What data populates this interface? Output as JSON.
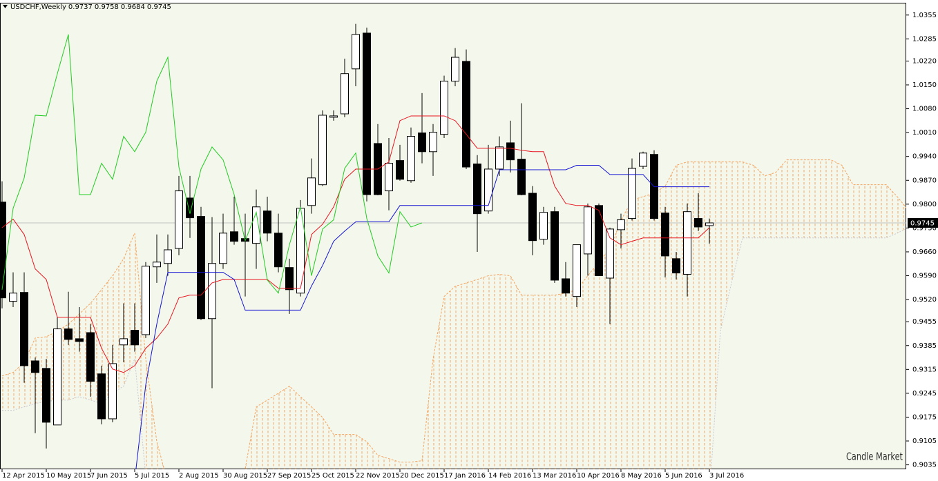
{
  "chart_data": {
    "type": "candlestick",
    "title": "USDCHF,Weekly",
    "watermark": "Candle Market",
    "background": "#f4f7ec",
    "up_color": "#ffffff",
    "down_color": "#000000",
    "price_line_color": "#c0c0c0",
    "ylim": [
      0.9022,
      1.0391
    ],
    "yticks": [
      1.0355,
      1.0285,
      {
        "value": 1.022,
        "label": "1.0220"
      },
      {
        "value": 1.015,
        "label": "1.0150"
      },
      {
        "value": 1.008,
        "label": "1.0080"
      },
      {
        "value": 1.001,
        "label": "1.0010"
      },
      {
        "value": 0.994,
        "label": "0.9940"
      },
      {
        "value": 0.987,
        "label": "0.9870"
      },
      {
        "value": 0.98,
        "label": "0.9800"
      },
      {
        "value": 0.973,
        "label": "0.9730"
      },
      {
        "value": 0.966,
        "label": "0.9660"
      },
      {
        "value": 0.959,
        "label": "0.9590"
      },
      {
        "value": 0.952,
        "label": "0.9520"
      },
      0.9455,
      0.9385,
      0.9315,
      0.9245,
      0.9175,
      0.9105,
      0.9035
    ],
    "categories": [
      "12 Apr 2015",
      null,
      null,
      null,
      "10 May 2015",
      null,
      null,
      null,
      "7 Jun 2015",
      null,
      null,
      null,
      "5 Jul 2015",
      null,
      null,
      null,
      "2 Aug 2015",
      null,
      null,
      null,
      "30 Aug 2015",
      null,
      null,
      null,
      "27 Sep 2015",
      null,
      null,
      null,
      "25 Oct 2015",
      null,
      null,
      null,
      "22 Nov 2015",
      null,
      null,
      null,
      "20 Dec 2015",
      null,
      null,
      null,
      "17 Jan 2016",
      null,
      null,
      null,
      "14 Feb 2016",
      null,
      null,
      null,
      "13 Mar 2016",
      null,
      null,
      null,
      "10 Apr 2016",
      null,
      null,
      null,
      "8 May 2016",
      null,
      null,
      null,
      "5 Jun 2016",
      null,
      null,
      null,
      "3 Jul 2016",
      null,
      null,
      null,
      null,
      null,
      null,
      null,
      null,
      null,
      null,
      null,
      null,
      null,
      null,
      null,
      null,
      null,
      null
    ],
    "open": [
      0.9806,
      0.9515,
      0.9541,
      0.934,
      0.9318,
      0.9152,
      0.9434,
      0.9405,
      0.9423,
      0.9302,
      0.917,
      0.9387,
      0.943,
      0.9417,
      0.9616,
      0.9626,
      0.967,
      0.9818,
      0.9764,
      0.9464,
      0.9626,
      0.9719,
      0.9699,
      0.9685,
      0.978,
      0.9715,
      0.9614,
      0.9539,
      0.9796,
      0.9857,
      1.0055,
      1.0065,
      1.0197,
      1.0302,
      0.9978,
      0.9839,
      0.9928,
      0.9869,
      1.0009,
      0.9954,
      1.0005,
      1.0161,
      1.0219,
      0.9918,
      0.978,
      0.9903,
      0.998,
      0.9932,
      0.9832,
      0.9697,
      0.9778,
      0.9581,
      0.9529,
      0.9654,
      0.9796,
      0.9583,
      0.9725,
      0.9758,
      0.9911,
      0.9946,
      0.9774,
      0.964,
      0.9594,
      0.9758,
      0.9737,
      null,
      null,
      null,
      null,
      null,
      null,
      null,
      null,
      null,
      null,
      null,
      null,
      null,
      null,
      null,
      null,
      null,
      null
    ],
    "high": [
      0.9867,
      0.96,
      0.96,
      0.935,
      0.9346,
      0.9468,
      0.9543,
      0.9498,
      0.9448,
      0.9326,
      0.9387,
      0.9509,
      0.9509,
      0.963,
      0.9711,
      0.9711,
      0.9883,
      0.9883,
      0.9792,
      0.9762,
      0.9772,
      0.9822,
      0.9772,
      0.9843,
      0.9822,
      0.9772,
      0.964,
      0.9812,
      0.9934,
      1.0075,
      1.0075,
      1.0227,
      1.0329,
      1.0318,
      1.0035,
      0.9994,
      0.9974,
      1.0025,
      1.0126,
      1.0035,
      1.0177,
      1.0258,
      1.0254,
      0.9944,
      0.9974,
      0.9999,
      1.0045,
      1.0096,
      0.9853,
      0.9792,
      0.9792,
      0.963,
      0.9681,
      0.9802,
      0.9802,
      0.9731,
      0.9772,
      0.9934,
      0.9954,
      0.9958,
      0.9792,
      0.966,
      0.9802,
      0.9832,
      0.9758,
      null,
      null,
      null,
      null,
      null,
      null,
      null,
      null,
      null,
      null,
      null,
      null,
      null,
      null,
      null,
      null,
      null,
      null
    ],
    "low": [
      0.9494,
      0.9498,
      0.9276,
      0.9128,
      0.9083,
      0.9152,
      0.9387,
      0.9367,
      0.9235,
      0.9154,
      0.916,
      0.9336,
      0.9367,
      0.9407,
      0.9569,
      0.959,
      0.965,
      0.9701,
      0.946,
      0.926,
      0.961,
      0.9681,
      0.9529,
      0.961,
      0.9691,
      0.96,
      0.9478,
      0.9529,
      0.9772,
      0.9853,
      1.0045,
      1.0055,
      1.0146,
      0.9808,
      0.9826,
      0.9782,
      0.9869,
      0.9863,
      0.992,
      0.9883,
      0.9994,
      1.0146,
      0.9903,
      0.966,
      0.9772,
      0.9883,
      0.9893,
      0.9826,
      0.965,
      0.9681,
      0.9569,
      0.9529,
      0.9498,
      0.959,
      0.959,
      0.9448,
      0.967,
      0.9752,
      0.9903,
      0.9752,
      0.9585,
      0.9579,
      0.9529,
      0.9721,
      0.9684,
      null,
      null,
      null,
      null,
      null,
      null,
      null,
      null,
      null,
      null,
      null,
      null,
      null,
      null,
      null,
      null,
      null,
      null
    ],
    "close": [
      0.9525,
      0.9539,
      0.9326,
      0.9306,
      0.916,
      0.9434,
      0.9403,
      0.9397,
      0.928,
      0.917,
      0.9332,
      0.9405,
      0.9387,
      0.9618,
      0.963,
      0.9666,
      0.9839,
      0.976,
      0.9464,
      0.9626,
      0.9715,
      0.9691,
      0.9691,
      0.9792,
      0.9715,
      0.9616,
      0.9549,
      0.9788,
      0.9877,
      1.0061,
      1.0059,
      1.0183,
      1.0298,
      0.9828,
      0.9828,
      0.992,
      0.9873,
      0.9999,
      0.9954,
      1.0011,
      1.0161,
      1.0231,
      0.9909,
      0.9772,
      0.9903,
      0.9968,
      0.993,
      0.9828,
      0.9693,
      0.9776,
      0.9577,
      0.9539,
      0.9681,
      0.9792,
      0.959,
      0.9727,
      0.9754,
      0.9905,
      0.995,
      0.9758,
      0.9648,
      0.9598,
      0.9778,
      0.9733,
      0.9745,
      null,
      null,
      null,
      null,
      null,
      null,
      null,
      null,
      null,
      null,
      null,
      null,
      null,
      null,
      null,
      null,
      null,
      null
    ],
    "cloud": {
      "color": "#f4a460",
      "span_a": {
        "color": "#f4a460",
        "values": [
          0.9296,
          0.9306,
          0.9336,
          0.9407,
          0.9411,
          0.9427,
          0.9448,
          0.9478,
          0.9509,
          0.9549,
          0.959,
          0.964,
          0.9715,
          0.9346,
          0.9103,
          0.8982,
          0.8942,
          0.8942,
          0.8942,
          0.8942,
          0.8942,
          0.8942,
          0.9023,
          0.9205,
          0.9225,
          0.9245,
          0.9266,
          0.9235,
          0.9205,
          0.9174,
          0.9124,
          0.9124,
          0.9124,
          0.9103,
          0.9063,
          0.9053,
          0.9043,
          0.9043,
          0.9047,
          0.9346,
          0.9529,
          0.9559,
          0.9569,
          0.9579,
          0.959,
          0.9594,
          0.959,
          0.9533,
          0.9533,
          0.9533,
          0.9533,
          0.9539,
          0.9549,
          0.959,
          0.963,
          0.967,
          0.9752,
          0.9812,
          0.9822,
          0.9832,
          0.9853,
          0.9914,
          0.9924,
          0.9924,
          0.9924,
          0.9924,
          0.9924,
          0.9924,
          0.9914,
          0.9883,
          0.9893,
          0.993,
          0.993,
          0.993,
          0.993,
          0.993,
          0.9914,
          0.9857,
          0.9857,
          0.9857,
          0.9857,
          0.9822,
          0.9782
        ]
      },
      "span_b": {
        "color": "#c8c8d2",
        "values": [
          0.9195,
          0.9195,
          0.9205,
          0.9215,
          0.9221,
          0.9225,
          0.9225,
          0.9235,
          0.9225,
          0.9215,
          0.9245,
          0.9266,
          0.9346,
          0.9002,
          0.8942,
          0.8942,
          0.8942,
          0.8942,
          0.8942,
          0.8942,
          0.8942,
          0.8942,
          0.8942,
          0.8942,
          0.8942,
          0.8942,
          0.8942,
          0.8942,
          0.8942,
          0.8942,
          0.8942,
          0.8942,
          0.8942,
          0.8942,
          0.8942,
          0.8942,
          0.8942,
          0.8942,
          0.8942,
          0.8942,
          0.8942,
          0.8942,
          0.8942,
          0.8942,
          0.8942,
          0.8942,
          0.8942,
          0.8942,
          0.8942,
          0.8942,
          0.8942,
          0.8942,
          0.8942,
          0.8942,
          0.8942,
          0.8942,
          0.8942,
          0.8942,
          0.8942,
          0.8942,
          0.8942,
          0.8942,
          0.8942,
          0.8942,
          0.8942,
          0.9428,
          0.9569,
          0.9701,
          0.9701,
          0.9701,
          0.9701,
          0.9701,
          0.9701,
          0.9701,
          0.9701,
          0.9701,
          0.9701,
          0.9701,
          0.9701,
          0.9701,
          0.9701,
          0.9715,
          0.9731
        ]
      }
    },
    "lines": [
      {
        "color": "#e8141e",
        "values": [
          0.9731,
          0.9756,
          0.9711,
          0.961,
          0.9579,
          0.9468,
          0.9468,
          0.9468,
          0.9468,
          0.9377,
          0.9316,
          0.9306,
          0.9326,
          0.9377,
          0.9407,
          0.9448,
          0.9525,
          0.9533,
          0.9533,
          0.9569,
          0.9579,
          0.9579,
          0.9579,
          0.9579,
          0.9579,
          0.9553,
          0.9553,
          0.9553,
          0.9711,
          0.9741,
          0.9792,
          0.9873,
          0.9903,
          0.9903,
          0.9903,
          0.9924,
          1.0045,
          1.0059,
          1.0059,
          1.0059,
          1.0059,
          1.0045,
          1.0005,
          0.9964,
          0.9964,
          0.9964,
          0.9964,
          0.9958,
          0.9954,
          0.9954,
          0.9853,
          0.9802,
          0.9796,
          0.9796,
          0.9782,
          0.9701,
          0.9681,
          0.9691,
          0.9701,
          0.9701,
          0.9701,
          0.9701,
          0.9701,
          0.9701,
          0.9731,
          null,
          null,
          null,
          null,
          null,
          null,
          null,
          null,
          null,
          null,
          null,
          null,
          null,
          null,
          null,
          null,
          null,
          null
        ]
      },
      {
        "color": "#1414d2",
        "values": [
          null,
          null,
          null,
          null,
          null,
          null,
          null,
          null,
          null,
          null,
          null,
          null,
          0.899,
          0.927,
          0.9448,
          0.96,
          0.96,
          0.96,
          0.96,
          0.96,
          0.96,
          0.9579,
          0.9489,
          0.9489,
          0.9489,
          0.9489,
          0.9489,
          0.9489,
          0.956,
          0.962,
          0.9691,
          0.9721,
          0.9748,
          0.9748,
          0.9748,
          0.9748,
          0.9796,
          0.9796,
          0.9796,
          0.9796,
          0.9796,
          0.9796,
          0.9796,
          0.9796,
          0.9796,
          0.9901,
          0.9901,
          0.9901,
          0.9901,
          0.9901,
          0.9901,
          0.9901,
          0.9914,
          0.9914,
          0.9914,
          0.9887,
          0.9887,
          0.9887,
          0.9887,
          0.9851,
          0.9851,
          0.9851,
          0.9851,
          0.9851,
          0.9851,
          null,
          null,
          null,
          null,
          null,
          null,
          null,
          null,
          null,
          null,
          null,
          null,
          null,
          null,
          null,
          null,
          null,
          null
        ]
      },
      {
        "color": "#22cc22",
        "values": [
          0.9549,
          0.9788,
          0.9877,
          1.0061,
          1.0059,
          1.0183,
          1.0298,
          0.9828,
          0.9828,
          0.992,
          0.9873,
          0.9999,
          0.9954,
          1.0011,
          1.0161,
          1.0231,
          0.9909,
          0.9772,
          0.9903,
          0.9968,
          0.993,
          0.9828,
          0.9693,
          0.9776,
          0.9577,
          0.9539,
          0.9681,
          0.9792,
          0.959,
          0.9727,
          0.9754,
          0.9905,
          0.995,
          0.9758,
          0.9648,
          0.9598,
          0.9778,
          0.9733,
          0.9745,
          null,
          null,
          null,
          null,
          null,
          null,
          null,
          null,
          null,
          null,
          null,
          null,
          null,
          null,
          null,
          null,
          null,
          null,
          null,
          null,
          null,
          null,
          null,
          null,
          null,
          null,
          null,
          null,
          null,
          null,
          null,
          null,
          null,
          null,
          null,
          null,
          null,
          null,
          null,
          null,
          null,
          null,
          null,
          null
        ]
      }
    ]
  }
}
